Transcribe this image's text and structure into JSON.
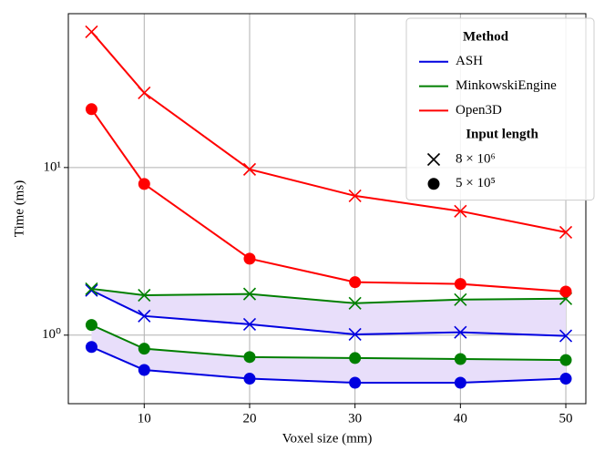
{
  "chart_data": {
    "type": "line",
    "x_label": "Voxel size (mm)",
    "y_label": "Time (ms)",
    "x": [
      5,
      10,
      20,
      30,
      40,
      50
    ],
    "xlim": [
      2.8,
      51.9
    ],
    "xticks": [
      10,
      20,
      30,
      40,
      50
    ],
    "ylim": [
      0.39,
      82.8
    ],
    "yticks": [
      {
        "value": 1,
        "label": "10⁰"
      },
      {
        "value": 10,
        "label": "10¹"
      }
    ],
    "log_y": true,
    "grid": true,
    "legend_loc": "upper right",
    "legend_titles": [
      "Method",
      "Input length"
    ],
    "input_lengths": [
      {
        "name": "8 × 10⁶",
        "marker": "x"
      },
      {
        "name": "5 × 10⁵",
        "marker": "o"
      }
    ],
    "methods": [
      {
        "name": "ASH",
        "color": "#0000e0",
        "values": [
          [
            1.85,
            1.3,
            1.16,
            1.01,
            1.04,
            0.99
          ],
          [
            0.85,
            0.62,
            0.55,
            0.52,
            0.52,
            0.55
          ]
        ]
      },
      {
        "name": "MinkowskiEngine",
        "color": "#007f00",
        "values": [
          [
            1.89,
            1.73,
            1.76,
            1.55,
            1.63,
            1.65
          ],
          [
            1.15,
            0.83,
            0.74,
            0.73,
            0.72,
            0.71
          ]
        ]
      },
      {
        "name": "Open3D",
        "color": "#ff0000",
        "values": [
          [
            64.5,
            27.9,
            9.75,
            6.78,
            5.49,
            4.11
          ],
          [
            22.3,
            7.98,
            2.86,
            2.07,
            2.02,
            1.82
          ]
        ]
      }
    ],
    "fill_between": {
      "methods": [
        0,
        1
      ],
      "color": "#e8defa"
    }
  }
}
